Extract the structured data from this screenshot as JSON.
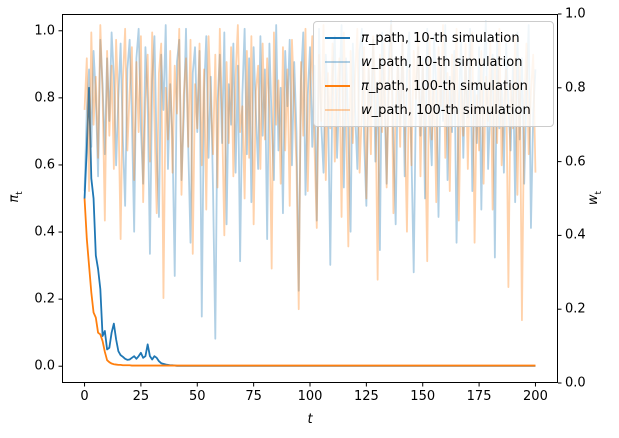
{
  "chart_data": {
    "type": "line",
    "title": "",
    "xlabel": "t",
    "ylabel_left": {
      "symbol": "π",
      "sub": "t"
    },
    "ylabel_right": {
      "symbol": "w",
      "sub": "t"
    },
    "xlim": [
      -10,
      210
    ],
    "ylim_left": [
      -0.05,
      1.05
    ],
    "ylim_right": [
      0.0,
      1.0
    ],
    "xticks": [
      0,
      25,
      50,
      75,
      100,
      125,
      150,
      175,
      200
    ],
    "yticks_left": [
      0.0,
      0.2,
      0.4,
      0.6,
      0.8,
      1.0
    ],
    "yticks_right": [
      0.0,
      0.2,
      0.4,
      0.6,
      0.8,
      1.0
    ],
    "grid": false,
    "legend_position": "upper right",
    "x_start": 0,
    "x_step": 1,
    "n_points": 201,
    "colors": {
      "blue": "#1f77b4",
      "orange": "#ff7f0e",
      "w_alpha": 0.35
    },
    "series": [
      {
        "name": "pi_path_10",
        "label_symbol": "π",
        "label_rest": "_path, 10-th simulation",
        "color": "#1f77b4",
        "opacity": 1,
        "axis": "left",
        "pad_to": 201,
        "pad_value": 0.001,
        "values": [
          0.5,
          0.65,
          0.83,
          0.56,
          0.5,
          0.33,
          0.29,
          0.23,
          0.09,
          0.105,
          0.05,
          0.055,
          0.1,
          0.127,
          0.08,
          0.045,
          0.033,
          0.028,
          0.022,
          0.019,
          0.02,
          0.025,
          0.03,
          0.022,
          0.03,
          0.04,
          0.025,
          0.03,
          0.065,
          0.03,
          0.02,
          0.03,
          0.025,
          0.015,
          0.009,
          0.007,
          0.005,
          0.004,
          0.003,
          0.003,
          0.002
        ]
      },
      {
        "name": "w_path_10",
        "label_symbol": "w",
        "label_rest": "_path, 10-th simulation",
        "color": "#1f77b4",
        "opacity": 0.35,
        "axis": "right",
        "values": [
          0.52,
          0.74,
          0.85,
          0.64,
          0.9,
          0.78,
          0.56,
          0.93,
          0.81,
          0.62,
          0.88,
          0.71,
          0.95,
          0.83,
          0.59,
          0.77,
          0.92,
          0.66,
          0.48,
          0.85,
          0.93,
          0.72,
          0.41,
          0.88,
          0.96,
          0.69,
          0.54,
          0.91,
          0.77,
          0.35,
          0.82,
          0.94,
          0.63,
          0.45,
          0.89,
          0.74,
          0.97,
          0.58,
          0.81,
          0.66,
          0.29,
          0.87,
          0.93,
          0.55,
          0.72,
          0.96,
          0.64,
          0.38,
          0.84,
          0.91,
          0.68,
          0.9,
          0.18,
          0.79,
          0.94,
          0.61,
          0.83,
          0.52,
          0.12,
          0.76,
          0.89,
          0.65,
          0.95,
          0.43,
          0.81,
          0.7,
          0.92,
          0.57,
          0.86,
          0.33,
          0.78,
          0.96,
          0.62,
          0.88,
          0.49,
          0.91,
          0.73,
          0.58,
          0.94,
          0.67,
          0.85,
          0.39,
          0.92,
          0.71,
          0.55,
          0.97,
          0.63,
          0.8,
          0.46,
          0.9,
          0.75,
          0.93,
          0.59,
          0.87,
          0.68,
          0.25,
          0.82,
          0.95,
          0.51,
          0.78,
          0.91,
          0.64,
          0.86,
          0.44,
          0.96,
          0.7,
          0.57,
          0.89,
          0.76,
          0.32,
          0.83,
          0.94,
          0.61,
          0.79,
          0.97,
          0.53,
          0.88,
          0.69,
          0.41,
          0.92,
          0.74,
          0.58,
          0.9,
          0.96,
          0.66,
          0.48,
          0.85,
          0.72,
          0.93,
          0.6,
          0.81,
          0.36,
          0.95,
          0.77,
          0.54,
          0.89,
          0.98,
          0.65,
          0.43,
          0.87,
          0.7,
          0.92,
          0.56,
          0.84,
          0.95,
          0.62,
          0.3,
          0.78,
          0.91,
          0.67,
          0.88,
          0.5,
          0.96,
          0.73,
          0.59,
          0.94,
          0.8,
          0.45,
          0.86,
          0.71,
          0.97,
          0.55,
          0.83,
          0.68,
          0.9,
          0.38,
          0.75,
          0.93,
          0.61,
          0.87,
          0.72,
          0.96,
          0.52,
          0.8,
          0.65,
          0.91,
          0.47,
          0.84,
          0.98,
          0.58,
          0.76,
          0.89,
          0.34,
          0.94,
          0.69,
          0.81,
          0.57,
          0.92,
          0.75,
          0.63,
          0.86,
          0.49,
          0.95,
          0.66,
          0.88,
          0.54,
          0.79,
          0.97,
          0.42,
          0.73,
          0.85
        ]
      },
      {
        "name": "pi_path_100",
        "label_symbol": "π",
        "label_rest": "_path, 100-th simulation",
        "color": "#ff7f0e",
        "opacity": 1,
        "axis": "left",
        "pad_to": 201,
        "pad_value": 0.002,
        "values": [
          0.5,
          0.38,
          0.3,
          0.22,
          0.16,
          0.145,
          0.1,
          0.095,
          0.075,
          0.043,
          0.018,
          0.012,
          0.008,
          0.006,
          0.005,
          0.004,
          0.004,
          0.003,
          0.003,
          0.003,
          0.003
        ]
      },
      {
        "name": "w_path_100",
        "label_symbol": "w",
        "label_rest": "_path, 100-th simulation",
        "color": "#ff7f0e",
        "opacity": 0.35,
        "axis": "right",
        "values": [
          0.74,
          0.88,
          0.52,
          0.95,
          0.7,
          0.83,
          0.61,
          0.97,
          0.78,
          0.44,
          0.9,
          0.67,
          0.86,
          0.58,
          0.93,
          0.75,
          0.39,
          0.82,
          0.96,
          0.63,
          0.79,
          0.91,
          0.55,
          0.87,
          0.68,
          0.94,
          0.49,
          0.76,
          0.89,
          0.6,
          0.95,
          0.71,
          0.46,
          0.84,
          0.92,
          0.23,
          0.8,
          0.66,
          0.9,
          0.57,
          0.86,
          0.73,
          0.96,
          0.51,
          0.78,
          0.88,
          0.64,
          0.93,
          0.35,
          0.81,
          0.69,
          0.92,
          0.59,
          0.85,
          0.47,
          0.94,
          0.77,
          0.62,
          0.89,
          0.53,
          0.96,
          0.72,
          0.4,
          0.87,
          0.65,
          0.91,
          0.56,
          0.83,
          0.97,
          0.68,
          0.75,
          0.5,
          0.9,
          0.61,
          0.94,
          0.43,
          0.79,
          0.86,
          0.58,
          0.92,
          0.66,
          0.88,
          0.74,
          0.31,
          0.95,
          0.7,
          0.82,
          0.54,
          0.91,
          0.63,
          0.85,
          0.48,
          0.93,
          0.76,
          0.59,
          0.2,
          0.87,
          0.67,
          0.96,
          0.52,
          0.8,
          0.94,
          0.64,
          0.42,
          0.89,
          0.71,
          0.97,
          0.55,
          0.84,
          0.69,
          0.92,
          0.6,
          0.78,
          0.88,
          0.45,
          0.95,
          0.73,
          0.37,
          0.9,
          0.65,
          0.83,
          0.96,
          0.57,
          0.74,
          0.91,
          0.5,
          0.86,
          0.62,
          0.94,
          0.79,
          0.28,
          0.89,
          0.68,
          0.92,
          0.53,
          0.81,
          0.97,
          0.46,
          0.75,
          0.88,
          0.64,
          0.93,
          0.72,
          0.41,
          0.85,
          0.59,
          0.9,
          0.77,
          0.95,
          0.56,
          0.87,
          0.7,
          0.33,
          0.94,
          0.66,
          0.82,
          0.49,
          0.91,
          0.75,
          0.97,
          0.61,
          0.84,
          0.52,
          0.89,
          0.73,
          0.96,
          0.44,
          0.8,
          0.67,
          0.92,
          0.58,
          0.86,
          0.95,
          0.38,
          0.78,
          0.63,
          0.9,
          0.54,
          0.83,
          0.71,
          0.93,
          0.47,
          0.88,
          0.65,
          0.96,
          0.59,
          0.76,
          0.85,
          0.26,
          0.81,
          0.69,
          0.94,
          0.51,
          0.87,
          0.17,
          0.74,
          0.92,
          0.62,
          0.79,
          0.89,
          0.57
        ]
      }
    ]
  }
}
